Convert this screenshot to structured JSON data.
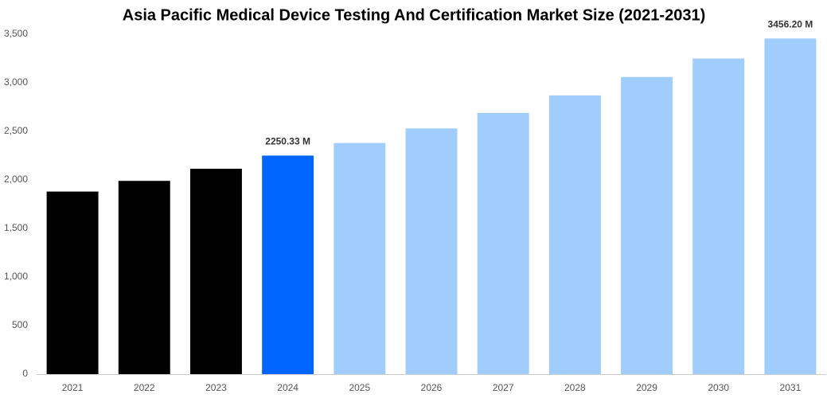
{
  "chart_data": {
    "type": "bar",
    "title": "Asia Pacific Medical Device Testing And Certification Market Size (2021-2031)",
    "categories": [
      "2021",
      "2022",
      "2023",
      "2024",
      "2025",
      "2026",
      "2027",
      "2028",
      "2029",
      "2030",
      "2031"
    ],
    "values": [
      1880,
      1990,
      2115,
      2250.33,
      2380,
      2530,
      2690,
      2870,
      3060,
      3250,
      3456.2
    ],
    "value_labels": [
      null,
      null,
      null,
      "2250.33 M",
      null,
      null,
      null,
      null,
      null,
      null,
      "3456.20 M"
    ],
    "colors": [
      "#000000",
      "#000000",
      "#000000",
      "#0066ff",
      "#a0cdfc",
      "#a0cdfc",
      "#a0cdfc",
      "#a0cdfc",
      "#a0cdfc",
      "#a0cdfc",
      "#a0cdfc"
    ],
    "ylim": [
      0,
      3500
    ],
    "yticks": [
      0,
      500,
      {
        "value": 1000,
        "label": "1,000"
      },
      {
        "value": 1500,
        "label": "1,500"
      },
      {
        "value": 2000,
        "label": "2,000"
      },
      {
        "value": 2500,
        "label": "2,500"
      },
      {
        "value": 3000,
        "label": "3,000"
      },
      {
        "value": 3500,
        "label": "3,500"
      }
    ],
    "grid": false
  }
}
